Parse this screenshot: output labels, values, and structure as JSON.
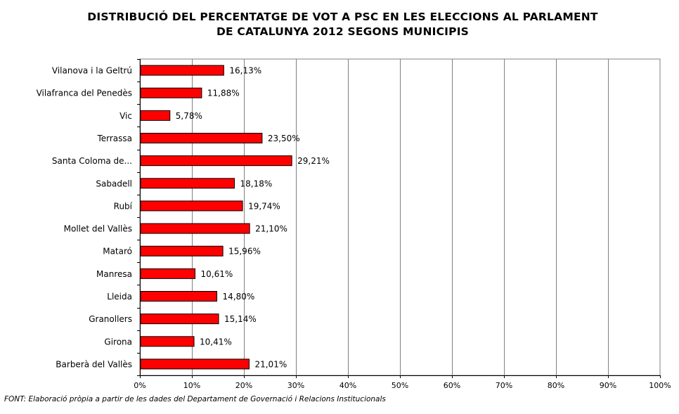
{
  "title_lines": [
    "DISTRIBUCIÓ DEL PERCENTATGE DE VOT A PSC EN LES ELECCIONS AL PARLAMENT",
    "DE CATALUNYA 2012 SEGONS MUNICIPIS"
  ],
  "source": "FONT: Elaboració pròpia a partir de les dades del Departament de Governació i Relacions Institucionals",
  "chart_data": {
    "type": "bar",
    "orientation": "horizontal",
    "categories": [
      "Vilanova i la Geltrú",
      "Vilafranca del Penedès",
      "Vic",
      "Terrassa",
      "Santa Coloma de...",
      "Sabadell",
      "Rubí",
      "Mollet del Vallès",
      "Mataró",
      "Manresa",
      "Lleida",
      "Granollers",
      "Girona",
      "Barberà del Vallès"
    ],
    "values": [
      16.13,
      11.88,
      5.78,
      23.5,
      29.21,
      18.18,
      19.74,
      21.1,
      15.96,
      10.61,
      14.8,
      15.14,
      10.41,
      21.01
    ],
    "data_labels": [
      "16,13%",
      "11,88%",
      "5,78%",
      "23,50%",
      "29,21%",
      "18,18%",
      "19,74%",
      "21,10%",
      "15,96%",
      "10,61%",
      "14,80%",
      "15,14%",
      "10,41%",
      "21,01%"
    ],
    "xlim": [
      0,
      100
    ],
    "xticks": [
      0,
      10,
      20,
      30,
      40,
      50,
      60,
      70,
      80,
      90,
      100
    ],
    "xtick_labels": [
      "0%",
      "10%",
      "20%",
      "30%",
      "40%",
      "50%",
      "60%",
      "70%",
      "80%",
      "90%",
      "100%"
    ],
    "grid": true,
    "legend": "none",
    "bar_color": "#ff0000"
  }
}
